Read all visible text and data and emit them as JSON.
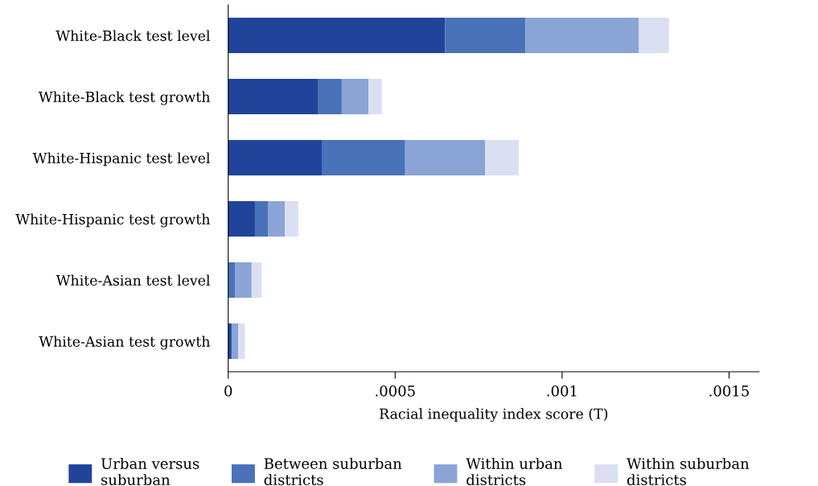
{
  "chart_data": {
    "type": "bar",
    "orientation": "horizontal",
    "stacked": true,
    "categories": [
      "White-Black test level",
      "White-Black test growth",
      "White-Hispanic test level",
      "White-Hispanic test growth",
      "White-Asian test level",
      "White-Asian test growth"
    ],
    "series": [
      {
        "name": "Urban versus\nsuburban",
        "color": "#21449a",
        "values": [
          0.00065,
          0.00027,
          0.00028,
          8e-05,
          0,
          1e-05
        ]
      },
      {
        "name": "Between suburban\ndistricts",
        "color": "#4a72b8",
        "values": [
          0.00024,
          7e-05,
          0.00025,
          4e-05,
          2e-05,
          0
        ]
      },
      {
        "name": "Within urban\ndistricts",
        "color": "#8aa4d6",
        "values": [
          0.00034,
          8e-05,
          0.00024,
          5e-05,
          5e-05,
          2e-05
        ]
      },
      {
        "name": "Within suburban\ndistricts",
        "color": "#dae0f2",
        "values": [
          9e-05,
          4e-05,
          0.0001,
          4e-05,
          3e-05,
          2e-05
        ]
      }
    ],
    "xlabel": "Racial inequality index score (T)",
    "xlim": [
      0,
      0.00159
    ],
    "xticks": [
      {
        "value": 0,
        "label": "0"
      },
      {
        "value": 0.0005,
        "label": ".0005"
      },
      {
        "value": 0.001,
        "label": ".001"
      },
      {
        "value": 0.0015,
        "label": ".0015"
      }
    ],
    "legend": "bottom",
    "grid": false
  }
}
